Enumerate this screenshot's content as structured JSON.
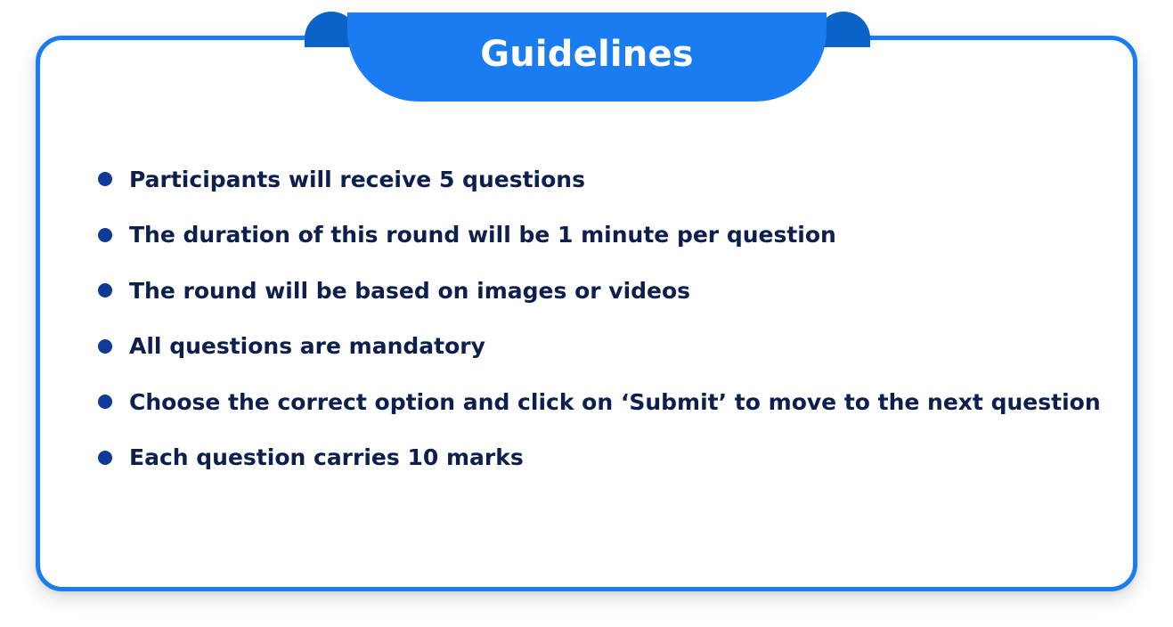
{
  "header": {
    "title": "Guidelines"
  },
  "guidelines": {
    "items": [
      "Participants will receive 5 questions",
      "The duration of this round will be 1 minute per question",
      "The round will be based on images or videos",
      "All questions are mandatory",
      "Choose the correct option and click on ‘Submit’ to move to the next question",
      "Each question carries 10 marks"
    ]
  },
  "colors": {
    "accent": "#1a7cf0",
    "accent_dark": "#0b63c9",
    "bullet": "#0f3a97",
    "text": "#0d1f4d"
  }
}
